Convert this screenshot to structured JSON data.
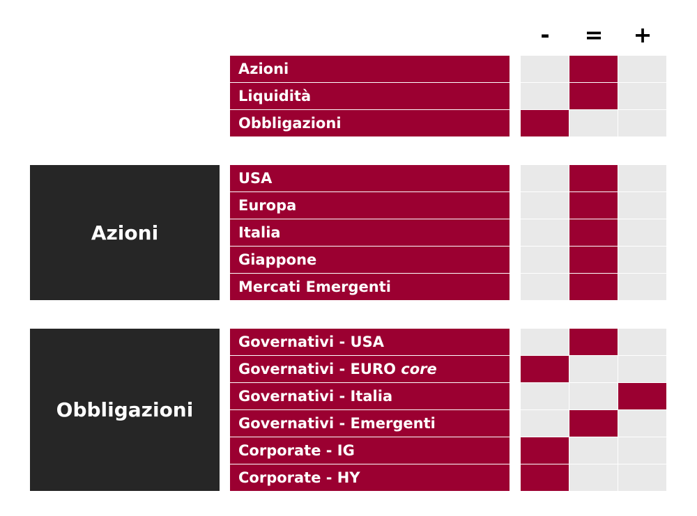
{
  "colors": {
    "accent": "#9b0031",
    "neutral_cell": "#e9e9e9",
    "group_label_bg": "#262626"
  },
  "columns": [
    "-",
    "=",
    "+"
  ],
  "sections": [
    {
      "label": "",
      "rows": [
        {
          "label": "Azioni",
          "label_em": "",
          "selected": 1
        },
        {
          "label": "Liquidità",
          "label_em": "",
          "selected": 1
        },
        {
          "label": "Obbligazioni",
          "label_em": "",
          "selected": 0
        }
      ]
    },
    {
      "label": "Azioni",
      "rows": [
        {
          "label": "USA",
          "label_em": "",
          "selected": 1
        },
        {
          "label": "Europa",
          "label_em": "",
          "selected": 1
        },
        {
          "label": "Italia",
          "label_em": "",
          "selected": 1
        },
        {
          "label": "Giappone",
          "label_em": "",
          "selected": 1
        },
        {
          "label": "Mercati Emergenti",
          "label_em": "",
          "selected": 1
        }
      ]
    },
    {
      "label": "Obbligazioni",
      "rows": [
        {
          "label": "Governativi - USA",
          "label_em": "",
          "selected": 1
        },
        {
          "label": "Governativi - EURO ",
          "label_em": "core",
          "selected": 0
        },
        {
          "label": "Governativi - Italia",
          "label_em": "",
          "selected": 2
        },
        {
          "label": "Governativi - Emergenti",
          "label_em": "",
          "selected": 1
        },
        {
          "label": "Corporate - IG",
          "label_em": "",
          "selected": 0
        },
        {
          "label": "Corporate - HY",
          "label_em": "",
          "selected": 0
        }
      ]
    }
  ]
}
